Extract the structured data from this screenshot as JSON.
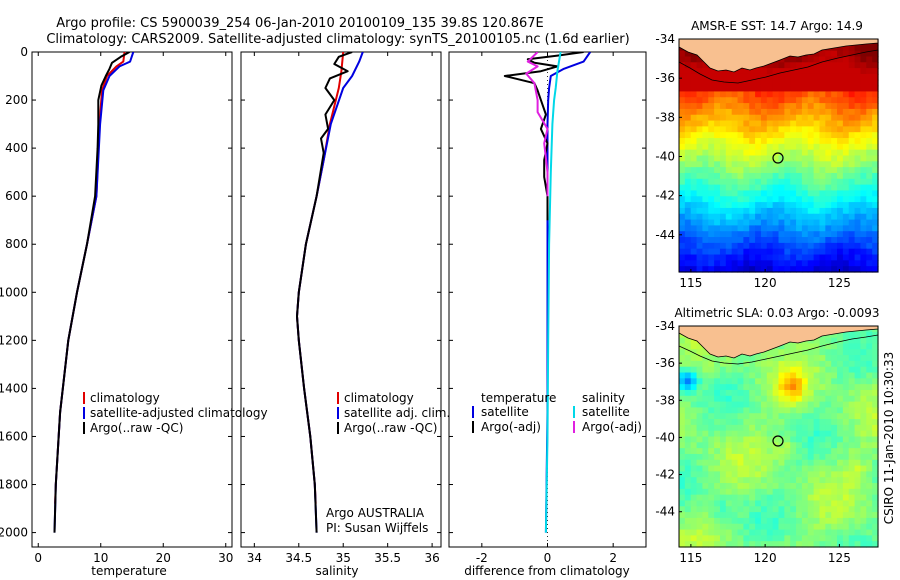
{
  "title_line1": "Argo profile: CS 5900039_254 06-Jan-2010 20100109_135 39.8S 120.867E",
  "title_line2": "Climatology: CARS2009. Satellite-adjusted climatology: synTS_20100105.nc (1.6d earlier)",
  "side_label": "CSIRO 11-Jan-2010 10:30:33",
  "chart_data": [
    {
      "type": "line",
      "id": "temperature",
      "xlabel": "temperature",
      "xlim": [
        -1,
        31
      ],
      "xticks": [
        "0",
        "10",
        "20",
        "30"
      ],
      "xtick_values": [
        0,
        10,
        20,
        30
      ],
      "ylim": [
        0,
        2060
      ],
      "yticks": [
        "0",
        "200",
        "400",
        "600",
        "800",
        "1000",
        "1200",
        "1400",
        "1600",
        "1800",
        "2000"
      ],
      "ytick_values": [
        0,
        200,
        400,
        600,
        800,
        1000,
        1200,
        1400,
        1600,
        1800,
        2000
      ],
      "legend": [
        "climatology",
        "satellite-adjusted climatology",
        "Argo(..raw -QC)"
      ],
      "series": [
        {
          "name": "climatology",
          "color": "#e00000",
          "depth": [
            0,
            40,
            60,
            100,
            160,
            300,
            600,
            800,
            1000,
            1200,
            1500,
            1800,
            1880
          ],
          "values": [
            13.8,
            13.6,
            12.5,
            11.0,
            10.2,
            9.8,
            9.3,
            7.8,
            6.2,
            4.8,
            3.5,
            2.8,
            2.7
          ]
        },
        {
          "name": "satellite-adjusted climatology",
          "color": "#0000e0",
          "depth": [
            0,
            40,
            60,
            100,
            160,
            300,
            600,
            800,
            1000,
            1200,
            1500,
            1800,
            2000
          ],
          "values": [
            15.2,
            14.7,
            13.0,
            11.4,
            10.4,
            9.9,
            9.3,
            7.8,
            6.2,
            4.8,
            3.5,
            2.8,
            2.6
          ]
        },
        {
          "name": "Argo(..raw -QC)",
          "color": "#000000",
          "depth": [
            0,
            20,
            45,
            70,
            100,
            140,
            200,
            300,
            400,
            600,
            800,
            1000,
            1200,
            1500,
            1800,
            2000
          ],
          "values": [
            14.6,
            13.2,
            11.8,
            11.4,
            10.8,
            10.1,
            9.6,
            9.6,
            9.5,
            9.1,
            7.8,
            6.2,
            4.8,
            3.5,
            2.8,
            2.6
          ]
        }
      ]
    },
    {
      "type": "line",
      "id": "salinity",
      "xlabel": "salinity",
      "xlim": [
        33.85,
        36.1
      ],
      "xticks": [
        "34",
        "34.5",
        "35",
        "35.5",
        "36"
      ],
      "xtick_values": [
        34,
        34.5,
        35,
        35.5,
        36
      ],
      "ylim": [
        0,
        2060
      ],
      "legend": [
        "climatology",
        "satellite adj. clim.",
        "Argo(..raw -QC)"
      ],
      "annotation": [
        "Argo AUSTRALIA",
        "PI: Susan Wijffels"
      ],
      "series": [
        {
          "name": "climatology",
          "color": "#e00000",
          "depth": [
            0,
            80,
            150,
            300,
            450,
            600,
            800,
            1000,
            1100,
            1200,
            1400,
            1600,
            1800,
            1880
          ],
          "values": [
            35.0,
            34.98,
            34.95,
            34.85,
            34.78,
            34.7,
            34.58,
            34.5,
            34.48,
            34.5,
            34.56,
            34.63,
            34.68,
            34.69
          ]
        },
        {
          "name": "satellite adj. clim.",
          "color": "#0000e0",
          "depth": [
            0,
            40,
            100,
            150,
            300,
            450,
            600,
            800,
            1000,
            1100,
            1200,
            1400,
            1600,
            1800,
            2000
          ],
          "values": [
            35.22,
            35.18,
            35.1,
            35.0,
            34.86,
            34.78,
            34.7,
            34.58,
            34.5,
            34.48,
            34.5,
            34.56,
            34.63,
            34.68,
            34.7
          ]
        },
        {
          "name": "Argo(..raw -QC)",
          "color": "#000000",
          "depth": [
            0,
            20,
            50,
            80,
            110,
            150,
            200,
            260,
            320,
            360,
            420,
            600,
            800,
            1000,
            1100,
            1200,
            1400,
            1600,
            1800,
            2000
          ],
          "values": [
            35.1,
            34.95,
            34.9,
            35.05,
            34.85,
            34.8,
            34.9,
            34.8,
            34.83,
            34.75,
            34.78,
            34.7,
            34.58,
            34.5,
            34.48,
            34.5,
            34.56,
            34.63,
            34.68,
            34.7
          ]
        }
      ]
    },
    {
      "type": "line",
      "id": "difference",
      "xlabel": "difference from climatology",
      "xlim": [
        -3.0,
        3.0
      ],
      "xticks": [
        "-2",
        "0",
        "2"
      ],
      "xtick_values": [
        -2,
        0,
        2
      ],
      "ylim": [
        0,
        2060
      ],
      "legend_left": [
        "temperature",
        "satellite",
        "Argo(-adj)"
      ],
      "legend_right": [
        "salinity",
        "satellite",
        "Argo(-adj)"
      ],
      "series": [
        {
          "name": "temperature satellite",
          "color": "#0000e0",
          "depth": [
            0,
            40,
            70,
            100,
            150,
            200,
            300,
            400,
            600,
            1000,
            1500,
            2000
          ],
          "values": [
            1.3,
            1.1,
            0.5,
            0.1,
            0.05,
            0.02,
            0.0,
            0.0,
            0.0,
            0.0,
            0.0,
            -0.05
          ]
        },
        {
          "name": "temperature Argo(-adj)",
          "color": "#000000",
          "depth": [
            0,
            15,
            30,
            45,
            60,
            80,
            100,
            130,
            160,
            200,
            260,
            320,
            380,
            450,
            520,
            600,
            700
          ],
          "values": [
            1.1,
            0.3,
            -0.6,
            -0.4,
            0.3,
            -0.2,
            -1.3,
            -0.4,
            -0.3,
            -0.2,
            -0.05,
            -0.2,
            0.0,
            -0.1,
            -0.1,
            0.0,
            0.0
          ]
        },
        {
          "name": "salinity satellite",
          "color": "#00d8e8",
          "depth": [
            0,
            40,
            80,
            150,
            200,
            300,
            500,
            800,
            1200,
            1600,
            2000
          ],
          "values": [
            0.4,
            0.35,
            0.3,
            0.25,
            0.2,
            0.15,
            0.1,
            0.05,
            0.02,
            0.0,
            -0.05
          ]
        },
        {
          "name": "salinity Argo(-adj)",
          "color": "#e020e0",
          "depth": [
            0,
            40,
            60,
            90,
            130,
            200,
            250,
            320,
            380,
            500,
            600
          ],
          "values": [
            -0.3,
            -0.6,
            -0.3,
            -0.65,
            -0.4,
            -0.3,
            -0.3,
            0.0,
            -0.1,
            0.0,
            0.0
          ]
        }
      ]
    },
    {
      "type": "heatmap",
      "id": "sst",
      "title": "AMSR-E SST: 14.7 Argo: 14.9",
      "xlim": [
        114.2,
        127.6
      ],
      "ylim": [
        -45.9,
        -34.0
      ],
      "xticks": [
        "115",
        "120",
        "125"
      ],
      "xtick_values": [
        115,
        120,
        125
      ],
      "yticks": [
        "-34",
        "-36",
        "-38",
        "-40",
        "-42",
        "-44"
      ],
      "ytick_values": [
        -34,
        -36,
        -38,
        -40,
        -42,
        -44
      ],
      "marker": {
        "lon": 120.867,
        "lat": -39.8
      }
    },
    {
      "type": "heatmap",
      "id": "sla",
      "title": "Altimetric SLA: 0.03 Argo: -0.0093",
      "xlim": [
        114.2,
        127.6
      ],
      "ylim": [
        -45.9,
        -34.0
      ],
      "xticks": [
        "115",
        "120",
        "125"
      ],
      "xtick_values": [
        115,
        120,
        125
      ],
      "yticks": [
        "-34",
        "-36",
        "-38",
        "-40",
        "-42",
        "-44"
      ],
      "ytick_values": [
        -34,
        -36,
        -38,
        -40,
        -42,
        -44
      ],
      "marker": {
        "lon": 120.867,
        "lat": -39.8
      }
    }
  ]
}
